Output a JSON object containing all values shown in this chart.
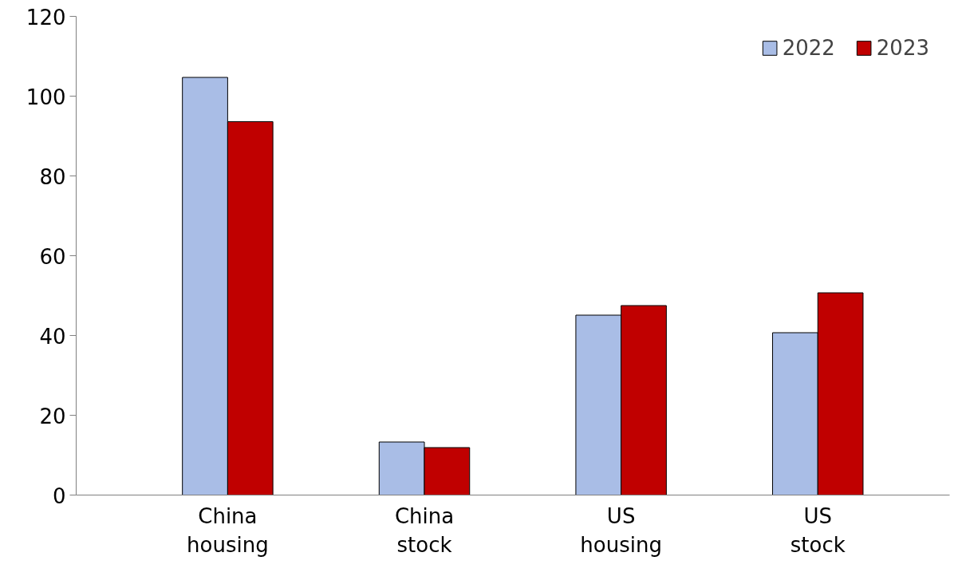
{
  "chart_data": {
    "type": "bar",
    "categories": [
      "China housing",
      "China stock",
      "US housing",
      "US stock"
    ],
    "series": [
      {
        "name": "2022",
        "color": "#a9bde6",
        "values": [
          104.7,
          13.3,
          45.1,
          40.7
        ]
      },
      {
        "name": "2023",
        "color": "#c00000",
        "values": [
          93.6,
          11.9,
          47.5,
          50.7
        ]
      }
    ],
    "ylim": [
      0,
      120
    ],
    "yticks": [
      0,
      20,
      40,
      60,
      80,
      100,
      120
    ],
    "grid": false,
    "legend": "top right"
  }
}
